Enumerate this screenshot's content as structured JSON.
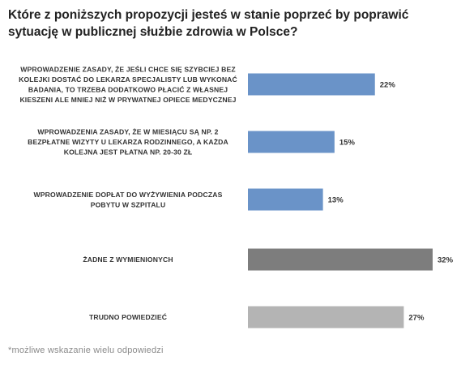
{
  "title": "Które z poniższych propozycji jesteś w stanie poprzeć by poprawić sytuację w publicznej służbie zdrowia w Polsce?",
  "footnote": "*możliwe wskazanie wielu odpowiedzi",
  "chart_data": {
    "type": "bar",
    "orientation": "horizontal",
    "title": "Które z poniższych propozycji jesteś w stanie poprzeć by poprawić sytuację w publicznej służbie zdrowia w Polsce?",
    "xlabel": "",
    "ylabel": "",
    "xlim": [
      0,
      32
    ],
    "grid": false,
    "legend": "none",
    "categories": [
      [
        "WPROWADZENIE ZASADY, ŻE JEŚLI CHCE SIĘ SZYBCIEJ BEZ",
        "KOLEJKI DOSTAĆ DO LEKARZA SPECJALISTY LUB WYKONAĆ",
        "BADANIA, TO TRZEBA DODATKOWO PŁACIĆ Z WŁASNEJ",
        "KIESZENI ALE MNIEJ NIŻ W PRYWATNEJ OPIECE MEDYCZNEJ"
      ],
      [
        "WPROWADZENIA ZASADY, ŻE W MIESIĄCU SĄ NP. 2",
        "BEZPŁATNE WIZYTY U LEKARZA RODZINNEGO, A KAŻDA",
        "KOLEJNA JEST PŁATNA NP. 20-30 ZŁ"
      ],
      [
        "WPROWADZENIE DOPŁAT DO WYŻYWIENIA PODCZAS",
        "POBYTU W SZPITALU"
      ],
      [
        "ŻADNE Z WYMIENIONYCH"
      ],
      [
        "TRUDNO POWIEDZIEĆ"
      ]
    ],
    "values": [
      22,
      15,
      13,
      32,
      27
    ],
    "value_labels": [
      "22%",
      "15%",
      "13%",
      "32%",
      "27%"
    ],
    "colors": [
      "#6a93c8",
      "#6a93c8",
      "#6a93c8",
      "#7d7d7d",
      "#b4b4b4"
    ]
  }
}
